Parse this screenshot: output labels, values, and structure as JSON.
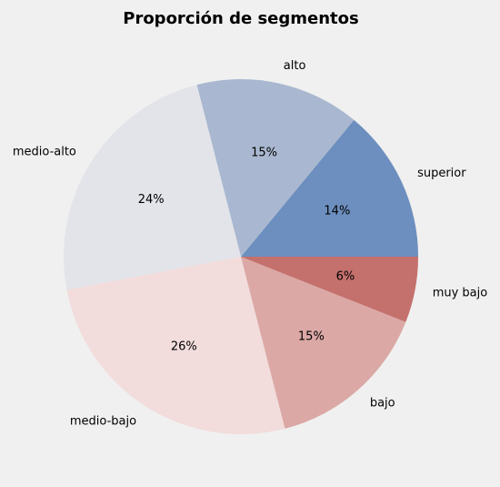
{
  "chart_data": {
    "type": "pie",
    "title": "Proporción de segmentos",
    "labels": [
      "superior",
      "alto",
      "medio-alto",
      "medio-bajo",
      "bajo",
      "muy bajo"
    ],
    "values": [
      14,
      15,
      24,
      26,
      15,
      6
    ],
    "value_labels": [
      "14%",
      "15%",
      "24%",
      "26%",
      "15%",
      "6%"
    ],
    "colors": [
      "#6d8fbf",
      "#a9b8d0",
      "#e3e4e9",
      "#f2dcdc",
      "#dba8a5",
      "#c4706c"
    ],
    "start_angle_deg": 0,
    "direction": "counterclockwise",
    "background": "#f0f0f0"
  }
}
